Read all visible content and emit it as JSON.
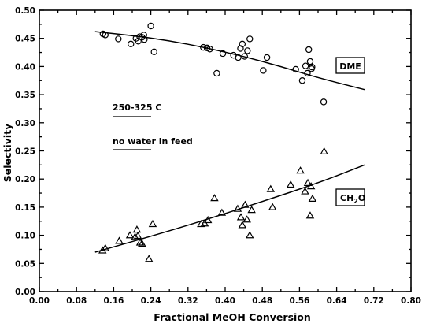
{
  "chart_data": {
    "type": "scatter",
    "xlabel": "Fractional MeOH Conversion",
    "ylabel": "Selectivity",
    "xlim": [
      0,
      0.8
    ],
    "ylim": [
      0,
      0.5
    ],
    "x_ticks": [
      "0.00",
      "0.08",
      "0.16",
      "0.24",
      "0.32",
      "0.40",
      "0.48",
      "0.56",
      "0.64",
      "0.72",
      "0.80"
    ],
    "y_ticks": [
      "0.00",
      "0.05",
      "0.10",
      "0.15",
      "0.20",
      "0.25",
      "0.30",
      "0.35",
      "0.40",
      "0.45",
      "0.50"
    ],
    "x_tick_values": [
      0,
      0.08,
      0.16,
      0.24,
      0.32,
      0.4,
      0.48,
      0.56,
      0.64,
      0.72,
      0.8
    ],
    "y_tick_values": [
      0,
      0.05,
      0.1,
      0.15,
      0.2,
      0.25,
      0.3,
      0.35,
      0.4,
      0.45,
      0.5
    ],
    "annotations": [
      "250-325 C",
      "no water in feed"
    ],
    "grid": false,
    "series": [
      {
        "name": "DME",
        "marker": "circle",
        "points": [
          [
            0.137,
            0.458
          ],
          [
            0.142,
            0.456
          ],
          [
            0.17,
            0.449
          ],
          [
            0.197,
            0.44
          ],
          [
            0.208,
            0.45
          ],
          [
            0.213,
            0.445
          ],
          [
            0.216,
            0.453
          ],
          [
            0.221,
            0.452
          ],
          [
            0.225,
            0.456
          ],
          [
            0.226,
            0.448
          ],
          [
            0.24,
            0.472
          ],
          [
            0.247,
            0.426
          ],
          [
            0.353,
            0.434
          ],
          [
            0.361,
            0.433
          ],
          [
            0.367,
            0.431
          ],
          [
            0.382,
            0.388
          ],
          [
            0.395,
            0.423
          ],
          [
            0.418,
            0.42
          ],
          [
            0.428,
            0.416
          ],
          [
            0.433,
            0.432
          ],
          [
            0.437,
            0.44
          ],
          [
            0.442,
            0.418
          ],
          [
            0.448,
            0.428
          ],
          [
            0.453,
            0.449
          ],
          [
            0.482,
            0.393
          ],
          [
            0.49,
            0.416
          ],
          [
            0.552,
            0.395
          ],
          [
            0.566,
            0.375
          ],
          [
            0.573,
            0.401
          ],
          [
            0.577,
            0.388
          ],
          [
            0.58,
            0.43
          ],
          [
            0.583,
            0.409
          ],
          [
            0.586,
            0.396
          ],
          [
            0.587,
            0.399
          ],
          [
            0.612,
            0.337
          ]
        ],
        "fit": [
          [
            0.12,
            0.462
          ],
          [
            0.2,
            0.455
          ],
          [
            0.28,
            0.446
          ],
          [
            0.36,
            0.433
          ],
          [
            0.44,
            0.418
          ],
          [
            0.52,
            0.4
          ],
          [
            0.6,
            0.38
          ],
          [
            0.7,
            0.359
          ]
        ]
      },
      {
        "name": "CH2O",
        "marker": "triangle",
        "points": [
          [
            0.136,
            0.073
          ],
          [
            0.142,
            0.077
          ],
          [
            0.172,
            0.09
          ],
          [
            0.195,
            0.1
          ],
          [
            0.206,
            0.097
          ],
          [
            0.21,
            0.11
          ],
          [
            0.212,
            0.099
          ],
          [
            0.217,
            0.087
          ],
          [
            0.221,
            0.085
          ],
          [
            0.236,
            0.058
          ],
          [
            0.244,
            0.12
          ],
          [
            0.348,
            0.12
          ],
          [
            0.356,
            0.121
          ],
          [
            0.363,
            0.127
          ],
          [
            0.377,
            0.166
          ],
          [
            0.393,
            0.14
          ],
          [
            0.427,
            0.147
          ],
          [
            0.434,
            0.132
          ],
          [
            0.437,
            0.118
          ],
          [
            0.443,
            0.154
          ],
          [
            0.447,
            0.128
          ],
          [
            0.453,
            0.1
          ],
          [
            0.457,
            0.145
          ],
          [
            0.498,
            0.182
          ],
          [
            0.502,
            0.15
          ],
          [
            0.541,
            0.19
          ],
          [
            0.562,
            0.215
          ],
          [
            0.572,
            0.178
          ],
          [
            0.578,
            0.193
          ],
          [
            0.583,
            0.135
          ],
          [
            0.585,
            0.187
          ],
          [
            0.588,
            0.165
          ],
          [
            0.613,
            0.249
          ]
        ],
        "fit": [
          [
            0.12,
            0.07
          ],
          [
            0.24,
            0.098
          ],
          [
            0.36,
            0.128
          ],
          [
            0.48,
            0.16
          ],
          [
            0.6,
            0.193
          ],
          [
            0.7,
            0.225
          ]
        ]
      }
    ]
  },
  "labels": {
    "dme_box": "DME",
    "ch2o_main": "CH",
    "ch2o_sub": "2",
    "ch2o_end": "O"
  }
}
